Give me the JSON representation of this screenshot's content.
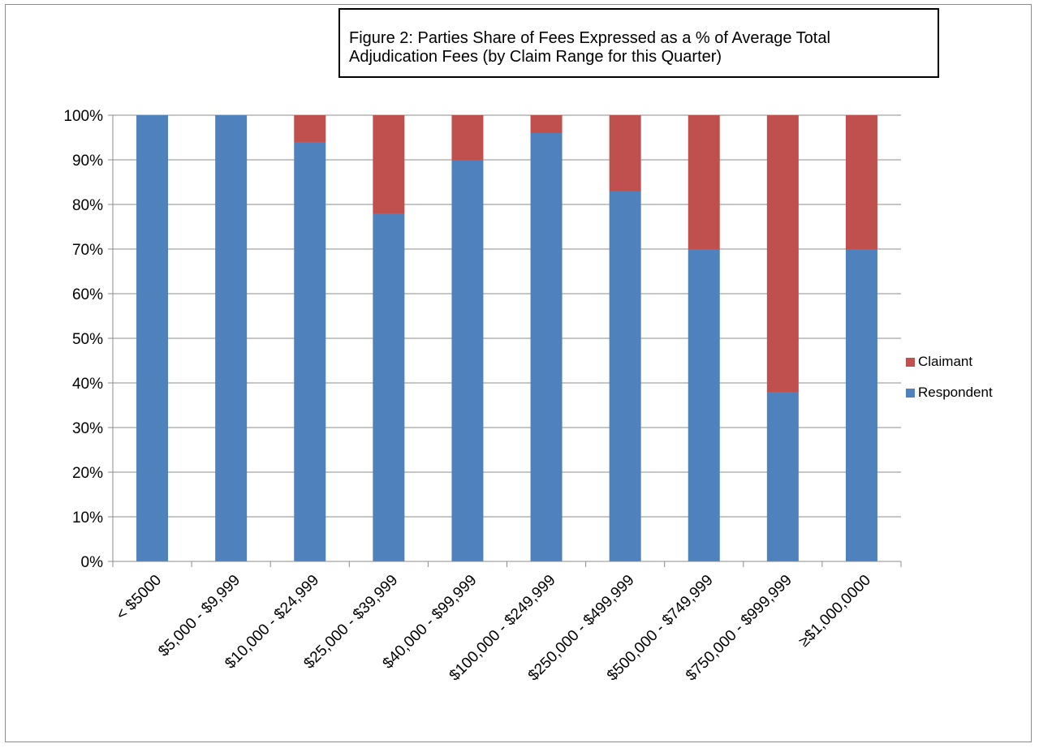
{
  "chart_data": {
    "type": "bar",
    "stacked": true,
    "title_lines": [
      "Figure 2: Parties Share of Fees Expressed as a % of Average Total",
      "Adjudication Fees (by Claim Range for this Quarter)"
    ],
    "categories": [
      "< $5000",
      "$5,000 - $9,999",
      "$10,000 - $24,999",
      "$25,000 - $39,999",
      "$40,000 - $99,999",
      "$100,000 - $249,999",
      "$250,000 - $499,999",
      "$500,000 - $749,999",
      "$750,000 - $999,999",
      "≥$1,000,0000"
    ],
    "series": [
      {
        "name": "Respondent",
        "color": "#4f81bd",
        "values": [
          100,
          100,
          94,
          78,
          90,
          96,
          83,
          70,
          38,
          70
        ]
      },
      {
        "name": "Claimant",
        "color": "#c0504d",
        "values": [
          0,
          0,
          6,
          22,
          10,
          4,
          17,
          30,
          62,
          30
        ]
      }
    ],
    "ylim": [
      0,
      100
    ],
    "yticks": [
      0,
      10,
      20,
      30,
      40,
      50,
      60,
      70,
      80,
      90,
      100
    ],
    "ytick_labels": [
      "0%",
      "10%",
      "20%",
      "30%",
      "40%",
      "50%",
      "60%",
      "70%",
      "80%",
      "90%",
      "100%"
    ],
    "grid": true,
    "legend": {
      "position": "right",
      "entries": [
        {
          "name": "Claimant",
          "color": "#c0504d"
        },
        {
          "name": "Respondent",
          "color": "#4f81bd"
        }
      ]
    }
  }
}
